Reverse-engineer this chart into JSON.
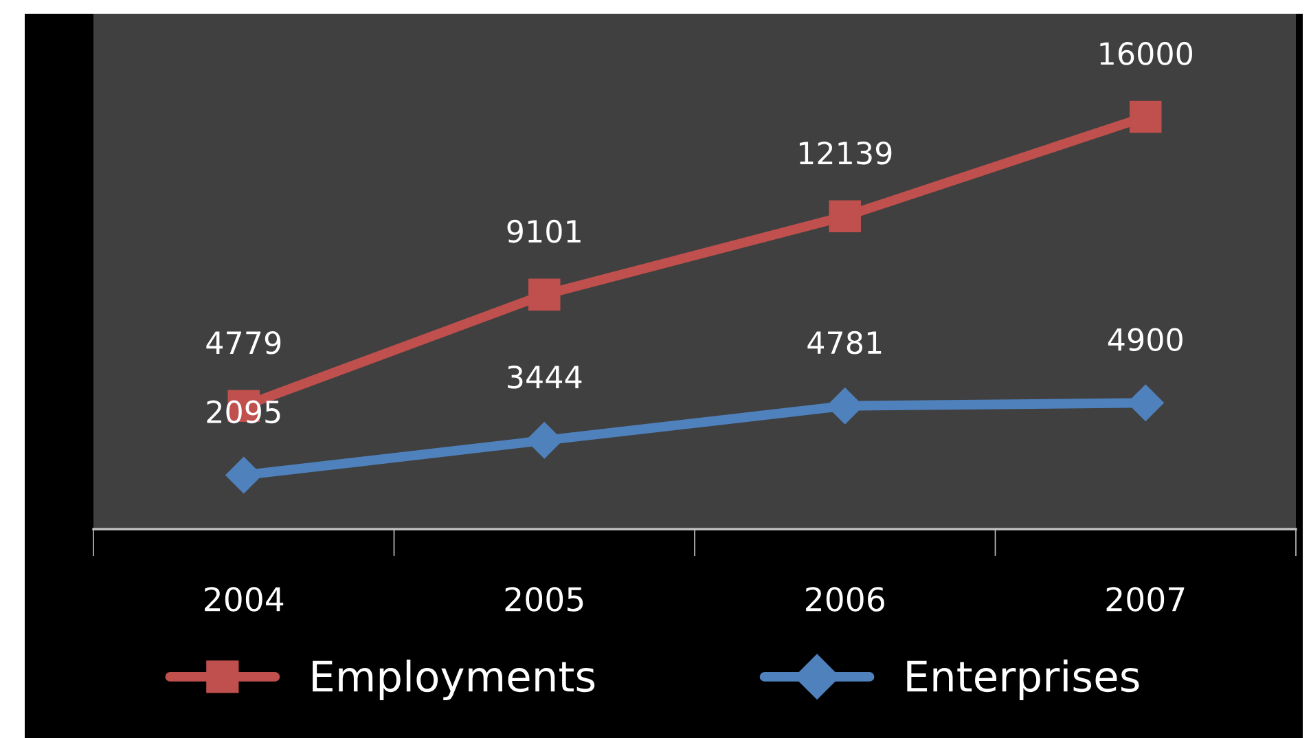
{
  "chart_data": {
    "type": "line",
    "categories": [
      "2004",
      "2005",
      "2006",
      "2007"
    ],
    "series": [
      {
        "name": "Employments",
        "color": "#c0504d",
        "marker": "square",
        "values": [
          4779,
          9101,
          12139,
          16000
        ]
      },
      {
        "name": "Enterprises",
        "color": "#4f81bd",
        "marker": "diamond",
        "values": [
          2095,
          3444,
          4781,
          4900
        ]
      }
    ],
    "ylim": [
      0,
      20000
    ],
    "data_labels": true,
    "legend": "bottom",
    "grid": false,
    "tick_labels": "x"
  }
}
